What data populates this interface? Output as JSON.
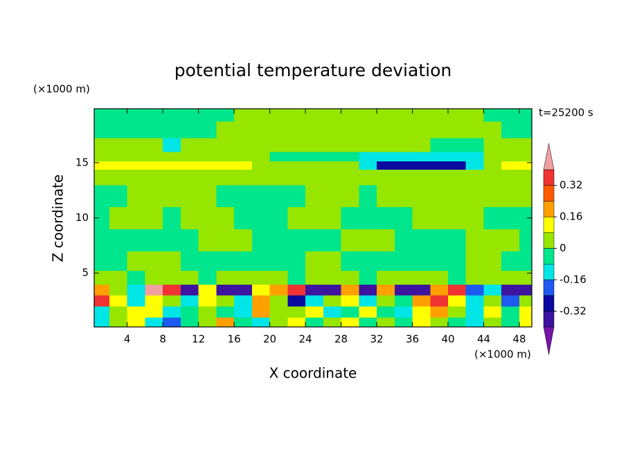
{
  "chart_data": {
    "type": "contour",
    "title": "potential temperature deviation",
    "xlabel": "X coordinate",
    "ylabel": "Z coordinate",
    "xunit": "(×1000 m)",
    "yunit": "(×1000 m)",
    "annotation": "t=25200 s",
    "xlim": [
      0.3,
      49.4
    ],
    "ylim": [
      0.125,
      19.875
    ],
    "xticks": [
      4,
      8,
      12,
      16,
      20,
      24,
      28,
      32,
      36,
      40,
      44,
      48
    ],
    "yticks": [
      5,
      10,
      15
    ],
    "levels": [
      -0.4,
      -0.32,
      -0.24,
      -0.16,
      -0.08,
      0,
      0.08,
      0.16,
      0.24,
      0.32,
      0.4
    ],
    "colors": [
      "#3c14a0",
      "#0a0aa0",
      "#1e5af0",
      "#00e6e6",
      "#00e68c",
      "#96e600",
      "#ffff00",
      "#ffa000",
      "#ff5a00",
      "#f03232"
    ],
    "under_color": "#7814a8",
    "over_color": "#f0a0a0",
    "colorbar_ticks": [
      0.32,
      0.16,
      0,
      -0.16,
      -0.32
    ],
    "x": [
      1,
      3,
      5,
      7,
      9,
      11,
      13,
      15,
      17,
      19,
      21,
      23,
      25,
      27,
      29,
      31,
      33,
      35,
      37,
      39,
      41,
      43,
      45,
      47,
      49
    ],
    "y": [
      0.5,
      1.5,
      2.5,
      3.5,
      4.5,
      6,
      8,
      10,
      12,
      14,
      14.8,
      15.5,
      16.5,
      18,
      19.5
    ],
    "z": [
      [
        -0.12,
        0.04,
        0.12,
        -0.12,
        -0.2,
        -0.04,
        0.04,
        0.2,
        -0.04,
        -0.12,
        0.04,
        0.12,
        -0.04,
        0.04,
        0.12,
        -0.04,
        0.04,
        -0.04,
        0.12,
        0.04,
        -0.04,
        -0.12,
        0.04,
        -0.04,
        0.12
      ],
      [
        -0.12,
        0.04,
        0.12,
        0.12,
        -0.12,
        -0.04,
        0.04,
        -0.04,
        -0.12,
        0.2,
        0.04,
        0.04,
        0.12,
        -0.12,
        -0.04,
        0.12,
        -0.04,
        -0.12,
        0.12,
        0.2,
        0.04,
        -0.12,
        0.12,
        -0.04,
        0.12
      ],
      [
        0.36,
        0.12,
        -0.12,
        0.12,
        0.04,
        -0.12,
        0.12,
        0.04,
        -0.12,
        0.2,
        0.04,
        -0.28,
        -0.12,
        0.04,
        0.12,
        -0.12,
        0.04,
        -0.04,
        0.2,
        0.36,
        0.12,
        -0.12,
        0.04,
        -0.2,
        0.04
      ],
      [
        0.2,
        0.04,
        -0.12,
        0.45,
        0.36,
        -0.36,
        0.12,
        -0.36,
        -0.36,
        0.12,
        0.2,
        0.36,
        -0.36,
        -0.36,
        0.2,
        -0.36,
        0.2,
        -0.36,
        -0.36,
        0.2,
        0.36,
        -0.2,
        -0.12,
        -0.36,
        -0.36
      ],
      [
        0.04,
        0.04,
        -0.04,
        0.04,
        0.04,
        0.04,
        -0.04,
        0.04,
        0.04,
        0.04,
        0.04,
        -0.04,
        0.04,
        0.04,
        0.04,
        -0.04,
        0.04,
        0.04,
        0.04,
        0.04,
        -0.04,
        0.04,
        0.04,
        0.04,
        0.04
      ],
      [
        -0.04,
        -0.04,
        0.04,
        0.04,
        0.04,
        -0.04,
        -0.04,
        -0.04,
        -0.04,
        -0.04,
        -0.04,
        -0.04,
        0.04,
        0.04,
        -0.04,
        -0.04,
        -0.04,
        -0.04,
        -0.04,
        -0.04,
        -0.04,
        0.04,
        0.04,
        -0.04,
        -0.04
      ],
      [
        -0.04,
        -0.04,
        -0.04,
        -0.04,
        -0.04,
        -0.04,
        0.04,
        0.04,
        0.04,
        -0.04,
        -0.04,
        -0.04,
        -0.04,
        -0.04,
        0.04,
        0.04,
        0.04,
        -0.04,
        -0.04,
        -0.04,
        -0.04,
        0.04,
        0.04,
        0.04,
        -0.04
      ],
      [
        -0.04,
        0.04,
        0.04,
        0.04,
        -0.04,
        0.04,
        0.04,
        0.04,
        -0.04,
        -0.04,
        -0.04,
        0.04,
        0.04,
        0.04,
        -0.04,
        -0.04,
        -0.04,
        -0.04,
        0.04,
        0.04,
        0.04,
        0.04,
        -0.04,
        -0.04,
        -0.04
      ],
      [
        -0.04,
        -0.04,
        0.04,
        0.04,
        0.04,
        0.04,
        0.04,
        -0.04,
        -0.04,
        -0.04,
        -0.04,
        -0.04,
        0.04,
        0.04,
        0.04,
        -0.04,
        0.04,
        0.04,
        0.04,
        0.04,
        0.04,
        0.04,
        0.04,
        0.04,
        0.04
      ],
      [
        0.04,
        0.04,
        0.04,
        0.04,
        0.04,
        0.04,
        0.04,
        0.04,
        0.04,
        0.04,
        0.04,
        0.04,
        0.04,
        0.04,
        0.04,
        0.04,
        0.04,
        0.04,
        0.04,
        0.04,
        0.04,
        0.04,
        0.04,
        0.04,
        0.04
      ],
      [
        0.12,
        0.12,
        0.12,
        0.12,
        0.12,
        0.12,
        0.12,
        0.12,
        0.12,
        0.04,
        0.04,
        0.04,
        0.04,
        0.04,
        0.04,
        -0.12,
        -0.28,
        -0.28,
        -0.28,
        -0.28,
        -0.28,
        -0.12,
        0.04,
        0.12,
        0.12
      ],
      [
        0.04,
        0.04,
        0.04,
        0.04,
        0.04,
        0.04,
        0.04,
        0.04,
        0.04,
        0.04,
        -0.04,
        -0.04,
        -0.04,
        -0.04,
        -0.04,
        -0.12,
        -0.12,
        -0.12,
        -0.12,
        -0.12,
        -0.12,
        -0.12,
        0.04,
        0.04,
        0.04
      ],
      [
        0.04,
        0.04,
        0.04,
        0.04,
        -0.12,
        0.04,
        0.04,
        0.04,
        0.04,
        0.04,
        0.04,
        0.04,
        0.04,
        0.04,
        0.04,
        0.04,
        0.04,
        0.04,
        0.04,
        -0.04,
        -0.04,
        -0.04,
        0.04,
        0.04,
        0.04
      ],
      [
        -0.04,
        -0.04,
        -0.04,
        -0.04,
        -0.04,
        -0.04,
        -0.04,
        0.04,
        0.04,
        0.04,
        0.04,
        0.04,
        0.04,
        0.04,
        0.04,
        0.04,
        0.04,
        0.04,
        0.04,
        0.04,
        0.04,
        0.04,
        0.04,
        -0.04,
        -0.04
      ],
      [
        -0.04,
        -0.04,
        -0.04,
        -0.04,
        -0.04,
        -0.04,
        -0.04,
        -0.04,
        0.04,
        0.04,
        0.04,
        0.04,
        0.04,
        0.04,
        0.04,
        0.04,
        0.04,
        0.04,
        0.04,
        0.04,
        0.04,
        0.04,
        -0.04,
        -0.04,
        -0.04
      ]
    ]
  }
}
